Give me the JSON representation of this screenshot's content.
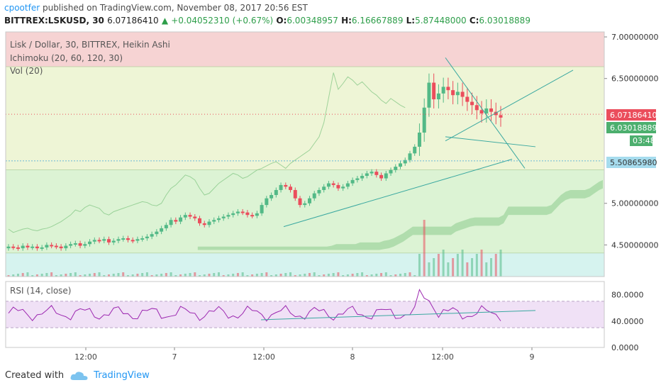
{
  "header": {
    "author": "cpootfer",
    "published_text": " published on TradingView.com, November 08, 2017 20:56 EST",
    "symbol": "BITTREX:LSKUSD, 30",
    "last": "6.07186410",
    "change": "+0.04052310 (+0.67%)",
    "o_label": "O:",
    "o_value": "6.00348957",
    "h_label": "H:",
    "h_value": "6.16667889",
    "l_label": "L:",
    "l_value": "5.87448000",
    "c_label": "C:",
    "c_value": "6.03018889"
  },
  "legend": {
    "line1": "Lisk / Dollar, 30, BITTREX, Heikin Ashi",
    "line2": "Ichimoku (20, 60, 120, 30)",
    "line3": "Vol (20)",
    "rsi": "RSI (14, close)"
  },
  "badges": {
    "last": "6.07186410",
    "close": "6.03018889",
    "countdown": "03:48",
    "level": "5.50865980"
  },
  "footer": {
    "created_with": "Created with",
    "brand": "TradingView"
  },
  "colors": {
    "up": "#53b987",
    "down": "#eb4d5c",
    "cloud": "#7bc47f",
    "rsi": "#9c27b0",
    "zone_red": "#f6d3d3",
    "zone_yellow": "#eef5d6",
    "zone_green": "#dcf3d4",
    "zone_cyan": "#d6f3ef"
  },
  "chart_data": {
    "type": "candlestick",
    "price_axis": {
      "ticks": [
        "7.00000000",
        "6.50000000",
        "5.00000000",
        "4.50000000"
      ],
      "range": [
        4.12,
        7.06
      ]
    },
    "time_axis": [
      "12:00",
      "7",
      "12:00",
      "8",
      "12:00",
      "9"
    ],
    "rsi_axis": {
      "ticks": [
        "80.0000",
        "40.0000",
        "0.0000"
      ],
      "range": [
        0,
        100
      ],
      "band": [
        30,
        70
      ]
    },
    "zones": [
      {
        "from": 6.64,
        "to": 7.06,
        "color": "red"
      },
      {
        "from": 5.4,
        "to": 6.64,
        "color": "yellow"
      },
      {
        "from": 4.4,
        "to": 5.4,
        "color": "green"
      },
      {
        "from": 4.12,
        "to": 4.4,
        "color": "cyan"
      }
    ],
    "candles": [
      4.48,
      4.47,
      4.46,
      4.49,
      4.47,
      4.48,
      4.46,
      4.47,
      4.5,
      4.49,
      4.48,
      4.46,
      4.49,
      4.51,
      4.52,
      4.49,
      4.51,
      4.54,
      4.56,
      4.55,
      4.57,
      4.53,
      4.55,
      4.57,
      4.58,
      4.56,
      4.55,
      4.57,
      4.58,
      4.6,
      4.63,
      4.66,
      4.7,
      4.74,
      4.8,
      4.78,
      4.83,
      4.86,
      4.84,
      4.82,
      4.76,
      4.74,
      4.78,
      4.8,
      4.82,
      4.84,
      4.86,
      4.88,
      4.9,
      4.89,
      4.86,
      4.85,
      4.88,
      4.98,
      5.06,
      5.1,
      5.16,
      5.22,
      5.2,
      5.16,
      5.06,
      4.98,
      5.0,
      5.06,
      5.12,
      5.16,
      5.2,
      5.24,
      5.22,
      5.18,
      5.2,
      5.24,
      5.28,
      5.3,
      5.33,
      5.36,
      5.38,
      5.34,
      5.3,
      5.36,
      5.4,
      5.44,
      5.48,
      5.52,
      5.6,
      5.68,
      5.85,
      6.15,
      6.45,
      6.25,
      6.32,
      6.4,
      6.36,
      6.3,
      6.34,
      6.28,
      6.22,
      6.18,
      6.12,
      6.08,
      6.14,
      6.1,
      6.06,
      6.03
    ],
    "annotation": "5.50865980"
  }
}
